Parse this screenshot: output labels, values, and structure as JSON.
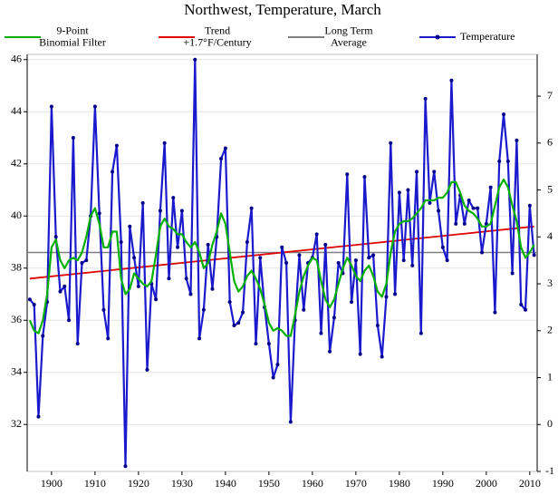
{
  "chart_data": {
    "type": "line",
    "title": "Northwest, Temperature, March",
    "x": [
      1895,
      1896,
      1897,
      1898,
      1899,
      1900,
      1901,
      1902,
      1903,
      1904,
      1905,
      1906,
      1907,
      1908,
      1909,
      1910,
      1911,
      1912,
      1913,
      1914,
      1915,
      1916,
      1917,
      1918,
      1919,
      1920,
      1921,
      1922,
      1923,
      1924,
      1925,
      1926,
      1927,
      1928,
      1929,
      1930,
      1931,
      1932,
      1933,
      1934,
      1935,
      1936,
      1937,
      1938,
      1939,
      1940,
      1941,
      1942,
      1943,
      1944,
      1945,
      1946,
      1947,
      1948,
      1949,
      1950,
      1951,
      1952,
      1953,
      1954,
      1955,
      1956,
      1957,
      1958,
      1959,
      1960,
      1961,
      1962,
      1963,
      1964,
      1965,
      1966,
      1967,
      1968,
      1969,
      1970,
      1971,
      1972,
      1973,
      1974,
      1975,
      1976,
      1977,
      1978,
      1979,
      1980,
      1981,
      1982,
      1983,
      1984,
      1985,
      1986,
      1987,
      1988,
      1989,
      1990,
      1991,
      1992,
      1993,
      1994,
      1995,
      1996,
      1997,
      1998,
      1999,
      2000,
      2001,
      2002,
      2003,
      2004,
      2005,
      2006,
      2007,
      2008,
      2009,
      2010,
      2011
    ],
    "series": [
      {
        "name": "9-Point\nBinomial Filter",
        "color": "#00b000",
        "values": [
          36.0,
          35.6,
          35.5,
          36.0,
          37.0,
          38.8,
          39.1,
          38.3,
          38.0,
          38.3,
          38.4,
          38.3,
          38.6,
          39.2,
          40.0,
          40.3,
          39.7,
          38.8,
          38.8,
          39.4,
          39.4,
          37.6,
          37.0,
          37.2,
          37.8,
          37.6,
          37.4,
          37.3,
          37.5,
          38.5,
          39.6,
          39.9,
          39.6,
          39.5,
          39.3,
          39.3,
          39.0,
          38.8,
          39.0,
          38.6,
          38.0,
          38.2,
          38.9,
          39.4,
          40.1,
          39.7,
          38.6,
          37.5,
          37.1,
          37.3,
          37.7,
          37.9,
          37.6,
          37.2,
          36.6,
          35.9,
          35.6,
          35.7,
          35.6,
          35.4,
          35.4,
          36.2,
          37.1,
          37.7,
          38.1,
          38.4,
          38.3,
          37.5,
          36.8,
          36.5,
          36.8,
          37.4,
          38.0,
          38.4,
          38.1,
          37.7,
          37.5,
          37.9,
          38.1,
          37.7,
          37.1,
          36.9,
          37.4,
          38.6,
          39.4,
          39.7,
          39.8,
          39.8,
          39.9,
          40.1,
          40.3,
          40.6,
          40.6,
          40.6,
          40.7,
          40.7,
          40.9,
          41.3,
          41.3,
          40.9,
          40.4,
          40.2,
          40.1,
          39.9,
          39.6,
          39.6,
          39.7,
          40.4,
          41.1,
          41.4,
          41.1,
          40.4,
          39.8,
          38.8,
          38.4,
          38.6,
          38.9
        ]
      },
      {
        "name": "Trend\n+1.7°F/Century",
        "color": "#e00000",
        "x": [
          1895,
          2011
        ],
        "values": [
          37.6,
          39.6
        ]
      },
      {
        "name": "Long Term\nAverage",
        "color": "#808080",
        "value": 38.6
      },
      {
        "name": "Temperature",
        "color": "#1a1acc",
        "values": [
          36.8,
          36.6,
          32.3,
          35.4,
          36.7,
          44.2,
          39.2,
          37.1,
          37.3,
          36.0,
          43.0,
          35.1,
          38.2,
          38.3,
          40.0,
          44.2,
          40.1,
          36.4,
          35.3,
          41.7,
          42.7,
          39.0,
          30.4,
          39.6,
          38.4,
          37.3,
          40.5,
          34.1,
          37.4,
          36.8,
          40.2,
          42.8,
          37.6,
          40.7,
          38.8,
          40.2,
          37.6,
          37.0,
          46.0,
          35.3,
          36.4,
          38.9,
          37.2,
          39.2,
          42.2,
          42.6,
          36.7,
          35.8,
          35.9,
          36.3,
          39.0,
          40.3,
          35.1,
          38.4,
          36.5,
          35.1,
          33.8,
          34.3,
          38.8,
          38.2,
          32.1,
          36.0,
          38.5,
          36.4,
          38.2,
          38.4,
          39.3,
          35.5,
          38.9,
          34.8,
          36.1,
          38.2,
          37.8,
          41.6,
          36.7,
          38.3,
          34.7,
          41.5,
          38.4,
          38.5,
          35.8,
          34.6,
          36.9,
          42.8,
          37.0,
          40.9,
          38.3,
          41.0,
          38.1,
          41.7,
          35.5,
          44.5,
          40.5,
          41.7,
          40.2,
          38.8,
          38.3,
          45.2,
          39.7,
          40.8,
          39.7,
          40.6,
          40.3,
          40.3,
          38.6,
          39.7,
          41.1,
          36.3,
          42.1,
          43.9,
          42.1,
          37.8,
          42.9,
          36.6,
          36.4,
          40.4,
          38.5
        ]
      }
    ],
    "xlim": [
      1894.4,
      2011.7
    ],
    "xticks": [
      1900,
      1910,
      1920,
      1930,
      1940,
      1950,
      1960,
      1970,
      1980,
      1990,
      2000,
      2010
    ],
    "ylim": [
      30.2,
      46.2
    ],
    "yticks": [
      32,
      34,
      36,
      38,
      40,
      42,
      44,
      46
    ],
    "y2lim": [
      -1,
      7.89
    ],
    "y2ticks": [
      -1,
      0,
      1,
      2,
      3,
      4,
      5,
      6,
      7
    ],
    "grid": true
  }
}
